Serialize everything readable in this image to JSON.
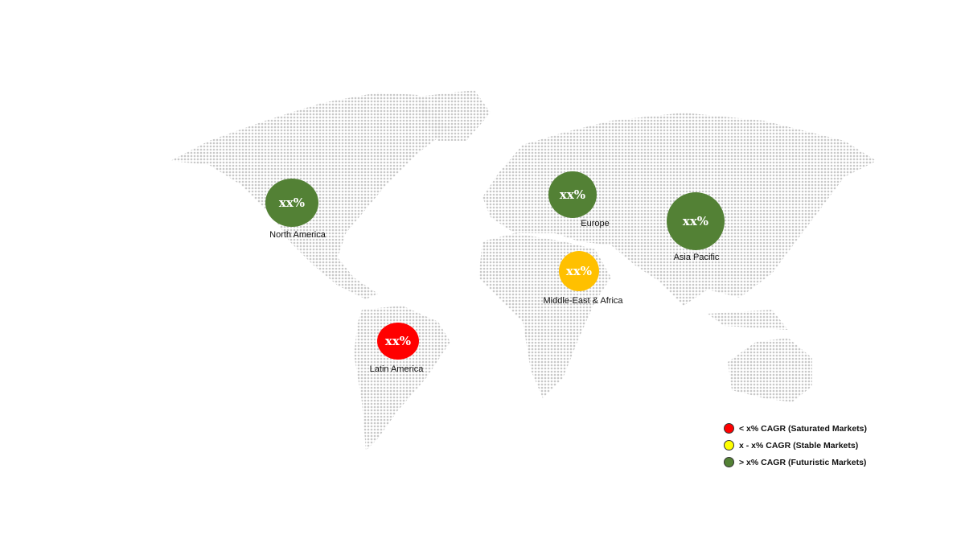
{
  "regions": [
    {
      "name": "North America",
      "value": "xx%",
      "color": "#538135"
    },
    {
      "name": "Europe",
      "value": "xx%",
      "color": "#538135"
    },
    {
      "name": "Asia Pacific",
      "value": "xx%",
      "color": "#538135"
    },
    {
      "name": "Middle-East & Africa",
      "value": "xx%",
      "color": "#ffc000"
    },
    {
      "name": "Latin America",
      "value": "xx%",
      "color": "#ff0000"
    }
  ],
  "legend": [
    {
      "label": "< x% CAGR (Saturated Markets)",
      "color": "#ff0000"
    },
    {
      "label": "x - x% CAGR (Stable Markets)",
      "color": "#ffff00"
    },
    {
      "label": "> x% CAGR (Futuristic Markets)",
      "color": "#538135"
    }
  ],
  "map_dot_color": "#c8c8c8"
}
